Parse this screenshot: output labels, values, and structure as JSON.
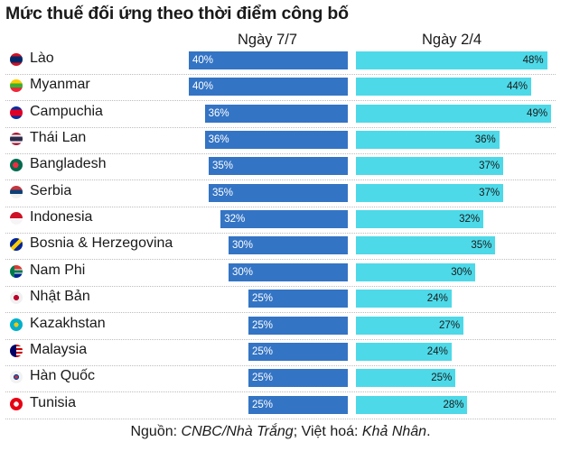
{
  "title": "Mức thuế đối ứng theo thời điểm công bố",
  "column_headers": {
    "left": "Ngày 7/7",
    "right": "Ngày 2/4"
  },
  "source": {
    "prefix": "Nguồn: ",
    "src": "CNBC/Nhà Trắng",
    "mid": "; Việt hoá: ",
    "author": "Khả Nhân",
    "suffix": "."
  },
  "chart_data": {
    "type": "bar",
    "orientation": "horizontal",
    "title": "Mức thuế đối ứng theo thời điểm công bố",
    "categories": [
      "Lào",
      "Myanmar",
      "Campuchia",
      "Thái Lan",
      "Bangladesh",
      "Serbia",
      "Indonesia",
      "Bosnia & Herzegovina",
      "Nam Phi",
      "Nhật Bản",
      "Kazakhstan",
      "Malaysia",
      "Hàn Quốc",
      "Tunisia"
    ],
    "series": [
      {
        "name": "Ngày 7/7",
        "values": [
          40,
          40,
          36,
          36,
          35,
          35,
          32,
          30,
          30,
          25,
          25,
          25,
          25,
          25
        ],
        "labels": [
          "40%",
          "40%",
          "36%",
          "36%",
          "35%",
          "35%",
          "32%",
          "30%",
          "30%",
          "25%",
          "25%",
          "25%",
          "25%",
          "25%"
        ],
        "color": "#3474c4",
        "direction": "leftward"
      },
      {
        "name": "Ngày 2/4",
        "values": [
          48,
          44,
          49,
          36,
          37,
          37,
          32,
          35,
          30,
          24,
          27,
          24,
          25,
          28
        ],
        "labels": [
          "48%",
          "44%",
          "49%",
          "36%",
          "37%",
          "37%",
          "32%",
          "35%",
          "30%",
          "24%",
          "27%",
          "24%",
          "25%",
          "28%"
        ],
        "color": "#4dd9e8",
        "direction": "rightward"
      }
    ],
    "unit": "%",
    "grid": false
  },
  "flags": [
    "lao-flag",
    "myanmar-flag",
    "cambodia-flag",
    "thailand-flag",
    "bangladesh-flag",
    "serbia-flag",
    "indonesia-flag",
    "bosnia-flag",
    "south-africa-flag",
    "japan-flag",
    "kazakhstan-flag",
    "malaysia-flag",
    "korea-flag",
    "tunisia-flag"
  ]
}
